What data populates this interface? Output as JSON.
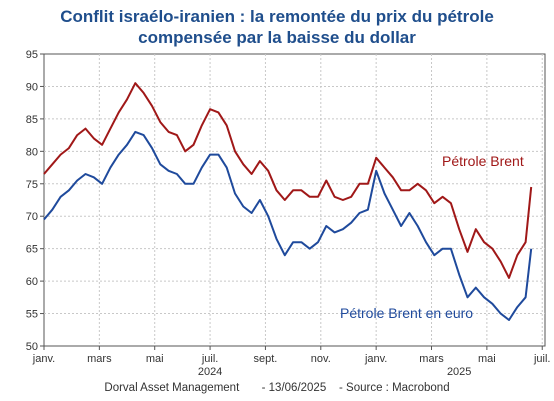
{
  "title": {
    "line1": "Conflit israélo-iranien : la remontée du prix du pétrole",
    "line2": "compensée par la baisse du dollar"
  },
  "footer": {
    "source1": "Dorval Asset Management",
    "source2": "- 13/06/2025",
    "source3": "- Source : Macrobond"
  },
  "chart_data": {
    "type": "line",
    "x_ticks": [
      "janv.",
      "mars",
      "mai",
      "juil.",
      "sept.",
      "nov.",
      "janv.",
      "mars",
      "mai",
      "juil."
    ],
    "x_ticks_months": [
      0,
      2,
      4,
      6,
      8,
      10,
      12,
      14,
      16,
      18
    ],
    "x_years": [
      {
        "label": "2024",
        "month": 6
      },
      {
        "label": "2025",
        "month": 15
      }
    ],
    "x_range_months": [
      0,
      18.1
    ],
    "ylim": [
      50,
      95
    ],
    "y_ticks": [
      50,
      55,
      60,
      65,
      70,
      75,
      80,
      85,
      90,
      95
    ],
    "grid": true,
    "series": [
      {
        "name": "Pétrole Brent",
        "color": "#a01818",
        "x_months": [
          0,
          0.3,
          0.6,
          0.9,
          1.2,
          1.5,
          1.8,
          2.1,
          2.4,
          2.7,
          3.0,
          3.3,
          3.6,
          3.9,
          4.2,
          4.5,
          4.8,
          5.1,
          5.4,
          5.7,
          6.0,
          6.3,
          6.6,
          6.9,
          7.2,
          7.5,
          7.8,
          8.1,
          8.4,
          8.7,
          9.0,
          9.3,
          9.6,
          9.9,
          10.2,
          10.5,
          10.8,
          11.1,
          11.4,
          11.7,
          12.0,
          12.3,
          12.6,
          12.9,
          13.2,
          13.5,
          13.8,
          14.1,
          14.4,
          14.7,
          15.0,
          15.3,
          15.6,
          15.9,
          16.2,
          16.5,
          16.8,
          17.1,
          17.4,
          17.6
        ],
        "values": [
          76.5,
          78,
          79.5,
          80.5,
          82.5,
          83.5,
          82,
          81,
          83.5,
          86,
          88,
          90.5,
          89,
          87,
          84.5,
          83,
          82.5,
          80,
          81,
          84,
          86.5,
          86,
          84,
          80,
          78,
          76.5,
          78.5,
          77,
          74,
          72.5,
          74,
          74,
          73,
          73,
          75.5,
          73,
          72.5,
          73,
          75,
          75,
          79,
          77.5,
          76,
          74,
          74,
          75,
          74,
          72,
          73,
          72,
          68,
          64.5,
          68,
          66,
          65,
          63,
          60.5,
          64,
          66,
          74.5
        ]
      },
      {
        "name": "Pétrole Brent en euro",
        "color": "#1f4a9c",
        "x_months": [
          0,
          0.3,
          0.6,
          0.9,
          1.2,
          1.5,
          1.8,
          2.1,
          2.4,
          2.7,
          3.0,
          3.3,
          3.6,
          3.9,
          4.2,
          4.5,
          4.8,
          5.1,
          5.4,
          5.7,
          6.0,
          6.3,
          6.6,
          6.9,
          7.2,
          7.5,
          7.8,
          8.1,
          8.4,
          8.7,
          9.0,
          9.3,
          9.6,
          9.9,
          10.2,
          10.5,
          10.8,
          11.1,
          11.4,
          11.7,
          12.0,
          12.3,
          12.6,
          12.9,
          13.2,
          13.5,
          13.8,
          14.1,
          14.4,
          14.7,
          15.0,
          15.3,
          15.6,
          15.9,
          16.2,
          16.5,
          16.8,
          17.1,
          17.4,
          17.6
        ],
        "values": [
          69.5,
          71,
          73,
          74,
          75.5,
          76.5,
          76,
          75,
          77.5,
          79.5,
          81,
          83,
          82.5,
          80.5,
          78,
          77,
          76.5,
          75,
          75,
          77.5,
          79.5,
          79.5,
          77.5,
          73.5,
          71.5,
          70.5,
          72.5,
          70,
          66.5,
          64,
          66,
          66,
          65,
          66,
          68.5,
          67.5,
          68,
          69,
          70.5,
          71,
          77,
          73.5,
          71,
          68.5,
          70.5,
          68.5,
          66,
          64,
          65,
          65,
          61,
          57.5,
          59,
          57.5,
          56.5,
          55,
          54,
          56,
          57.5,
          65
        ]
      }
    ]
  }
}
